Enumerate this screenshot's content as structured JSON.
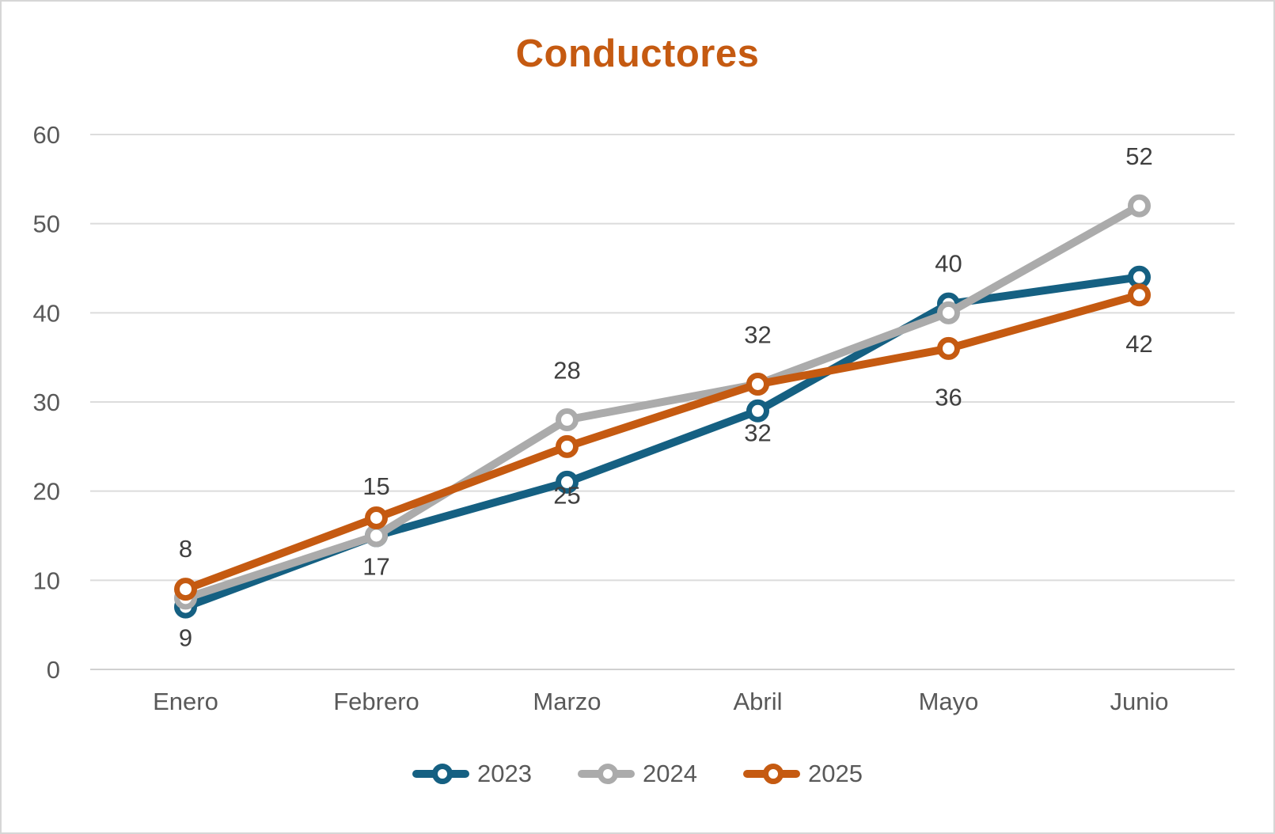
{
  "title": {
    "text": "Conductores",
    "color": "#C55A11"
  },
  "chart_data": {
    "type": "line",
    "categories": [
      "Enero",
      "Febrero",
      "Marzo",
      "Abril",
      "Mayo",
      "Junio"
    ],
    "series": [
      {
        "name": "2023",
        "color": "#156082",
        "values": [
          7,
          15,
          21,
          29,
          41,
          44
        ],
        "data_labels": "none"
      },
      {
        "name": "2024",
        "color": "#ABABAB",
        "values": [
          8,
          15,
          28,
          32,
          40,
          52
        ],
        "data_labels": "above"
      },
      {
        "name": "2025",
        "color": "#C55A11",
        "values": [
          9,
          17,
          25,
          32,
          36,
          42
        ],
        "data_labels": "below"
      }
    ],
    "ylim": [
      0,
      60
    ],
    "ytick_step": 10,
    "yticks": [
      "0",
      "10",
      "20",
      "30",
      "40",
      "50",
      "60"
    ],
    "grid": true,
    "legend_position": "bottom",
    "colors": {
      "axis_text": "#595959",
      "data_label_text": "#3F3F3F",
      "gridline": "#DCDCDC",
      "axis_line": "#D0D0D0"
    }
  }
}
